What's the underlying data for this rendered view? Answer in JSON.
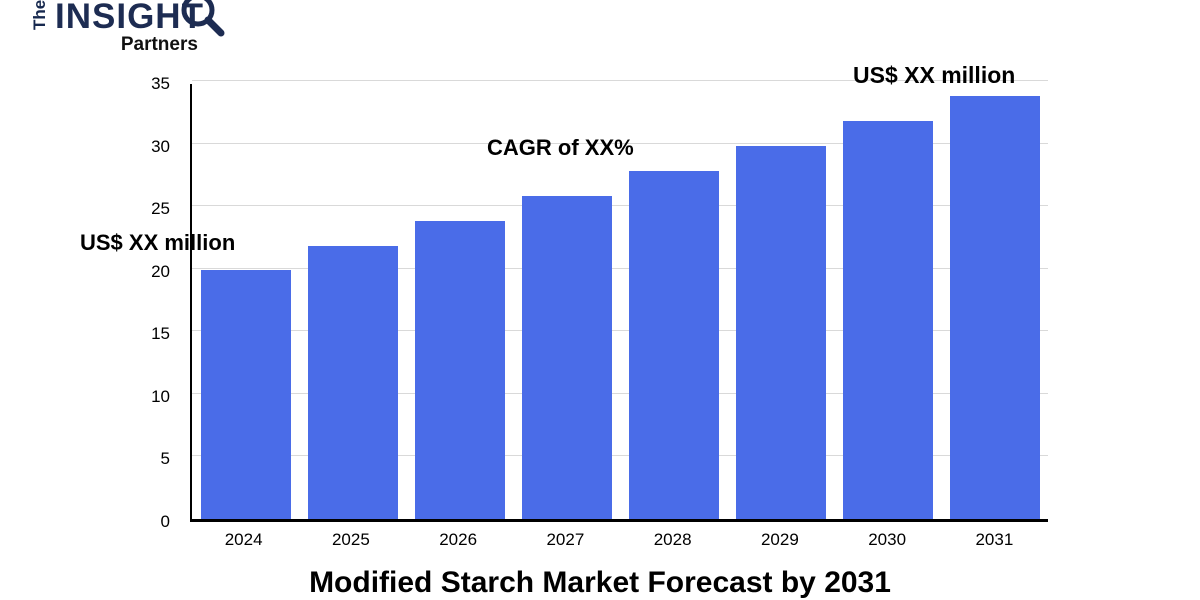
{
  "logo": {
    "the": "The",
    "insight": "INSIGHT",
    "partners": "Partners"
  },
  "annotations": {
    "left": "US$ XX million",
    "center": "CAGR of XX%",
    "right": "US$ XX million"
  },
  "title": "Modified Starch Market Forecast by 2031",
  "colors": {
    "bar": "#4a6ce8",
    "grid": "#d9d9d9",
    "axis": "#000000",
    "logo_navy": "#1d2c52"
  },
  "chart_data": {
    "type": "bar",
    "categories": [
      "2024",
      "2025",
      "2026",
      "2027",
      "2028",
      "2029",
      "2030",
      "2031"
    ],
    "values": [
      20,
      22,
      24,
      26,
      28,
      30,
      32,
      34
    ],
    "title": "Modified Starch Market Forecast by 2031",
    "xlabel": "",
    "ylabel": "",
    "ylim": [
      0,
      35
    ],
    "ytick_step": 5,
    "grid": true,
    "legend": "none",
    "annotations": [
      {
        "text": "US$ XX million",
        "anchor": "first-bar"
      },
      {
        "text": "CAGR of XX%",
        "anchor": "middle"
      },
      {
        "text": "US$ XX million",
        "anchor": "last-bar"
      }
    ]
  }
}
